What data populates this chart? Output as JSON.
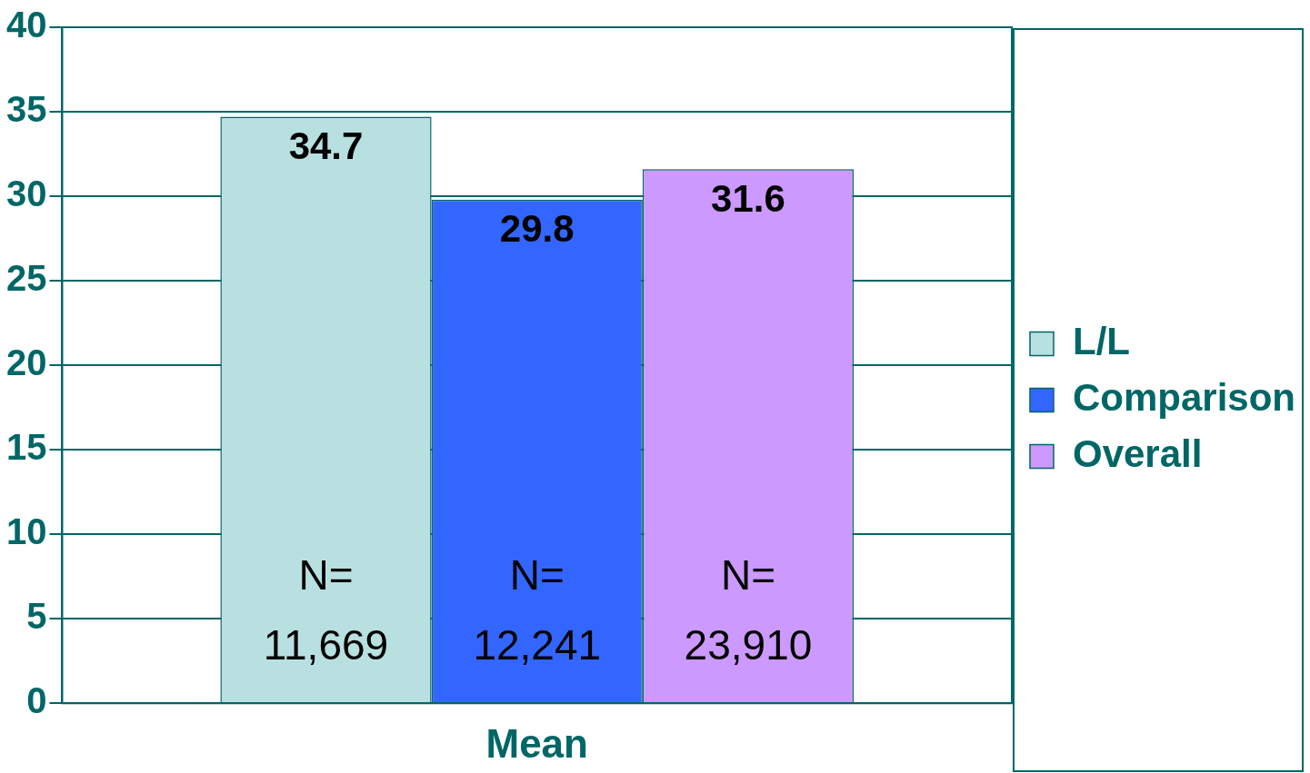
{
  "chart_data": {
    "type": "bar",
    "categories": [
      "Mean"
    ],
    "series": [
      {
        "name": "L/L",
        "color": "#b9e0e0",
        "values": [
          34.7
        ]
      },
      {
        "name": "Comparison",
        "color": "#3366ff",
        "values": [
          29.8
        ]
      },
      {
        "name": "Overall",
        "color": "#cc99ff",
        "values": [
          31.6
        ]
      }
    ],
    "ylim": [
      0,
      40
    ],
    "yticks": [
      0,
      5,
      10,
      15,
      20,
      25,
      30,
      35,
      40
    ],
    "grid": "y",
    "legend": "right",
    "data_labels": true,
    "annotations": [
      "N= 11,669",
      "N= 12,241",
      "N= 23,910"
    ]
  }
}
